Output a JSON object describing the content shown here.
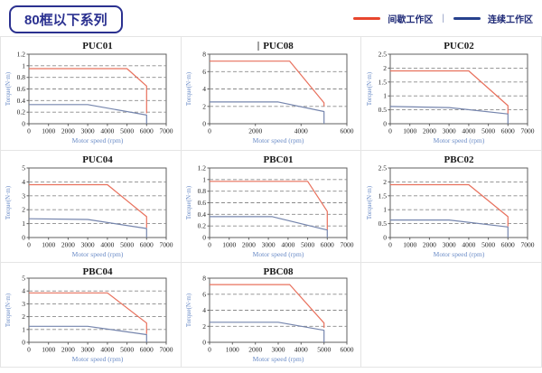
{
  "page": {
    "title": "80框以下系列"
  },
  "legend": {
    "items": [
      {
        "label": "间歇工作区",
        "color": "#e8462e"
      },
      {
        "label": "连续工作区",
        "color": "#27418d"
      }
    ],
    "separator": "|"
  },
  "colors": {
    "accent_navy": "#2b3190",
    "legend_red": "#e8462e",
    "legend_navy": "#27418d",
    "intermittent_line": "#e8705c",
    "continuous_line": "#7585ad",
    "axis_label": "#6b8cc7",
    "grid_line": "#8a8a8a",
    "frame": "#5f5f5f",
    "table_border": "#e4e4e4"
  },
  "chart_data": [
    {
      "type": "line",
      "title": "PUC01",
      "xlabel": "Motor speed (rpm)",
      "ylabel": "Torque(N·m)",
      "xlim": [
        0,
        7000
      ],
      "xtick_step": 1000,
      "ylim": [
        0,
        1.2
      ],
      "ytick_step": 0.2,
      "grid": "dashed-horizontal",
      "series": [
        {
          "name": "间歇工作区",
          "role": "intermittent",
          "points": [
            [
              0,
              0.95
            ],
            [
              5000,
              0.95
            ],
            [
              6000,
              0.65
            ],
            [
              6000,
              0.18
            ]
          ]
        },
        {
          "name": "连续工作区",
          "role": "continuous",
          "points": [
            [
              0,
              0.33
            ],
            [
              3000,
              0.33
            ],
            [
              6000,
              0.15
            ],
            [
              6000,
              0
            ]
          ]
        }
      ]
    },
    {
      "type": "line",
      "title": "PUC08",
      "title_cursor": true,
      "xlabel": "Motor speed (rpm)",
      "ylabel": "Torque(N·m)",
      "xlim": [
        0,
        6000
      ],
      "xtick_step": 2000,
      "ylim": [
        0,
        8
      ],
      "ytick_step": 2,
      "grid": "dashed-horizontal",
      "series": [
        {
          "name": "间歇工作区",
          "role": "intermittent",
          "points": [
            [
              0,
              7.2
            ],
            [
              3500,
              7.2
            ],
            [
              5000,
              2.4
            ],
            [
              5000,
              2.0
            ]
          ]
        },
        {
          "name": "连续工作区",
          "role": "continuous",
          "points": [
            [
              0,
              2.5
            ],
            [
              3000,
              2.5
            ],
            [
              5000,
              1.4
            ],
            [
              5000,
              0
            ]
          ]
        }
      ]
    },
    {
      "type": "line",
      "title": "PUC02",
      "xlabel": "Motor speed (rpm)",
      "ylabel": "Torque(N·m)",
      "xlim": [
        0,
        7000
      ],
      "xtick_step": 1000,
      "ylim": [
        0,
        2.5
      ],
      "ytick_step": 0.5,
      "grid": "dashed-horizontal",
      "series": [
        {
          "name": "间歇工作区",
          "role": "intermittent",
          "points": [
            [
              0,
              1.9
            ],
            [
              4000,
              1.9
            ],
            [
              6000,
              0.65
            ],
            [
              6000,
              0.35
            ]
          ]
        },
        {
          "name": "连续工作区",
          "role": "continuous",
          "points": [
            [
              0,
              0.62
            ],
            [
              3000,
              0.58
            ],
            [
              6000,
              0.35
            ],
            [
              6000,
              0
            ]
          ]
        }
      ]
    },
    {
      "type": "line",
      "title": "PUC04",
      "xlabel": "Motor speed (rpm)",
      "ylabel": "Torque(N·m)",
      "xlim": [
        0,
        7000
      ],
      "xtick_step": 1000,
      "ylim": [
        0,
        5
      ],
      "ytick_step": 1,
      "grid": "dashed-horizontal",
      "series": [
        {
          "name": "间歇工作区",
          "role": "intermittent",
          "points": [
            [
              0,
              3.8
            ],
            [
              4000,
              3.8
            ],
            [
              6000,
              1.5
            ],
            [
              6000,
              0.7
            ]
          ]
        },
        {
          "name": "连续工作区",
          "role": "continuous",
          "points": [
            [
              0,
              1.35
            ],
            [
              3000,
              1.3
            ],
            [
              6000,
              0.65
            ],
            [
              6000,
              0
            ]
          ]
        }
      ]
    },
    {
      "type": "line",
      "title": "PBC01",
      "xlabel": "Motor speed (rpm)",
      "ylabel": "Torque(N·m)",
      "xlim": [
        0,
        7000
      ],
      "xtick_step": 1000,
      "ylim": [
        0,
        1.2
      ],
      "ytick_step": 0.2,
      "grid": "dashed-horizontal",
      "series": [
        {
          "name": "间歇工作区",
          "role": "intermittent",
          "points": [
            [
              0,
              0.97
            ],
            [
              5000,
              0.97
            ],
            [
              6000,
              0.45
            ],
            [
              6000,
              0.13
            ]
          ]
        },
        {
          "name": "连续工作区",
          "role": "continuous",
          "points": [
            [
              0,
              0.36
            ],
            [
              3200,
              0.36
            ],
            [
              6000,
              0.13
            ],
            [
              6000,
              0
            ]
          ]
        }
      ]
    },
    {
      "type": "line",
      "title": "PBC02",
      "xlabel": "Motor speed (rpm)",
      "ylabel": "Torque(N·m)",
      "xlim": [
        0,
        7000
      ],
      "xtick_step": 1000,
      "ylim": [
        0,
        2.5
      ],
      "ytick_step": 0.5,
      "grid": "dashed-horizontal",
      "series": [
        {
          "name": "间歇工作区",
          "role": "intermittent",
          "points": [
            [
              0,
              1.9
            ],
            [
              4000,
              1.9
            ],
            [
              6000,
              0.75
            ],
            [
              6000,
              0.4
            ]
          ]
        },
        {
          "name": "连续工作区",
          "role": "continuous",
          "points": [
            [
              0,
              0.63
            ],
            [
              3000,
              0.63
            ],
            [
              6000,
              0.38
            ],
            [
              6000,
              0
            ]
          ]
        }
      ]
    },
    {
      "type": "line",
      "title": "PBC04",
      "xlabel": "Motor speed (rpm)",
      "ylabel": "Torque(N·m)",
      "xlim": [
        0,
        7000
      ],
      "xtick_step": 1000,
      "ylim": [
        0,
        5
      ],
      "ytick_step": 1,
      "grid": "dashed-horizontal",
      "series": [
        {
          "name": "间歇工作区",
          "role": "intermittent",
          "points": [
            [
              0,
              3.85
            ],
            [
              4000,
              3.85
            ],
            [
              6000,
              1.5
            ],
            [
              6000,
              0.65
            ]
          ]
        },
        {
          "name": "连续工作区",
          "role": "continuous",
          "points": [
            [
              0,
              1.25
            ],
            [
              3000,
              1.25
            ],
            [
              6000,
              0.6
            ],
            [
              6000,
              0
            ]
          ]
        }
      ]
    },
    {
      "type": "line",
      "title": "PBC08",
      "xlabel": "Motor speed (rpm)",
      "ylabel": "Torque(N·m)",
      "xlim": [
        0,
        6000
      ],
      "xtick_step": 1000,
      "ylim": [
        0,
        8
      ],
      "ytick_step": 2,
      "grid": "dashed-horizontal",
      "series": [
        {
          "name": "间歇工作区",
          "role": "intermittent",
          "points": [
            [
              0,
              7.2
            ],
            [
              3500,
              7.2
            ],
            [
              5000,
              2.4
            ],
            [
              5000,
              1.8
            ]
          ]
        },
        {
          "name": "连续工作区",
          "role": "continuous",
          "points": [
            [
              0,
              2.5
            ],
            [
              3000,
              2.5
            ],
            [
              5000,
              1.5
            ],
            [
              5000,
              0
            ]
          ]
        }
      ]
    }
  ]
}
